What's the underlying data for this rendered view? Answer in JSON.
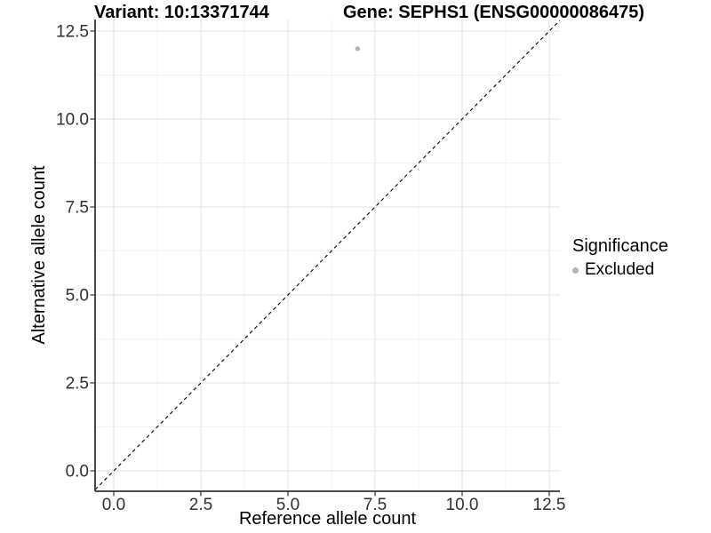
{
  "chart_data": {
    "type": "scatter",
    "title_left": "Variant: 10:13371744",
    "title_right": "Gene: SEPHS1 (ENSG00000086475)",
    "xlabel": "Reference allele count",
    "ylabel": "Alternative allele count",
    "x_ticks": [
      0,
      2.5,
      5,
      7.5,
      10,
      12.5
    ],
    "x_tick_labels": [
      "0.0",
      "2.5",
      "5.0",
      "7.5",
      "10.0",
      "12.5"
    ],
    "y_ticks": [
      0,
      2.5,
      5,
      7.5,
      10,
      12.5
    ],
    "y_tick_labels": [
      "0.0",
      "2.5",
      "5.0",
      "7.5",
      "10.0",
      "12.5"
    ],
    "xlim": [
      -0.625,
      13.125
    ],
    "ylim": [
      -0.625,
      13.125
    ],
    "grid": true,
    "reference_line": {
      "type": "identity y=x",
      "style": "dashed",
      "color": "#000000"
    },
    "series": [
      {
        "name": "Excluded",
        "color": "#b4b4b4",
        "points": [
          {
            "x": 7,
            "y": 12
          }
        ]
      }
    ],
    "legend": {
      "title": "Significance",
      "position": "right",
      "entries": [
        {
          "label": "Excluded",
          "color": "#b4b4b4",
          "marker": "circle"
        }
      ]
    },
    "colors": {
      "axis_line": "#333333",
      "tick_label": "#303030",
      "grid_major": "#e6e6e6",
      "grid_minor": "#f2f2f2",
      "background": "#ffffff"
    }
  }
}
